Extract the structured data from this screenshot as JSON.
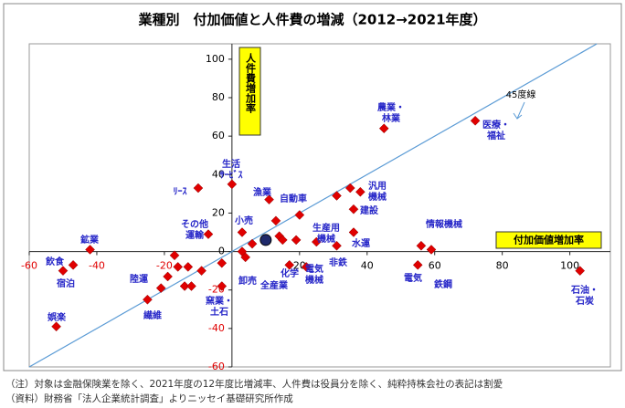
{
  "chart_data": {
    "type": "scatter",
    "title": "業種別　付加価値と人件費の増減（2012→2021年度）",
    "x_label": "付加価値増加率",
    "y_label": "人件費増加率",
    "xlim": [
      -60,
      112
    ],
    "ylim": [
      -60,
      108
    ],
    "xticks": [
      -60,
      -40,
      -20,
      20,
      40,
      60,
      80,
      100
    ],
    "yticks": [
      -60,
      -40,
      -20,
      0,
      20,
      40,
      60,
      80,
      100
    ],
    "negative_tick_color": "#e00000",
    "reference_line": {
      "label": "45度線",
      "color": "#5b9bd5"
    },
    "series": [
      {
        "marker": "diamond",
        "color": "#e00000",
        "x": [
          -42,
          -47,
          -50,
          -52,
          -25,
          -21,
          -17,
          -19,
          -16,
          -13,
          -14,
          -12,
          -9,
          -10,
          -7,
          0,
          3,
          -3,
          -3,
          4,
          3,
          6,
          11,
          13,
          14,
          15,
          17,
          22,
          19,
          20,
          25,
          31,
          31,
          35,
          38,
          36,
          36,
          45,
          72,
          56,
          59,
          55,
          103
        ],
        "values": [
          1,
          -7,
          -10,
          -39,
          -25,
          -19,
          -2,
          -13,
          -8,
          -8,
          -18,
          -18,
          -10,
          33,
          9,
          35,
          10,
          -18,
          -6,
          -3,
          0,
          4,
          27,
          16,
          8,
          6,
          -7,
          -8,
          6,
          19,
          5,
          3,
          29,
          33,
          31,
          22,
          10,
          64,
          68,
          3,
          1,
          -7,
          -10
        ],
        "labels": [
          [
            "鉱業"
          ],
          [
            "飲食"
          ],
          [
            "宿泊"
          ],
          [
            "娯楽"
          ],
          [
            "繊維"
          ],
          [
            "陸運"
          ],
          null,
          null,
          null,
          null,
          null,
          null,
          null,
          [
            "ﾘｰｽ"
          ],
          [
            "その他",
            "運輸"
          ],
          [
            "生活",
            "ｻｰﾋﾞｽ"
          ],
          [
            "小売"
          ],
          [
            "窯業・",
            "土石"
          ],
          null,
          [
            "卸売"
          ],
          null,
          null,
          [
            "漁業"
          ],
          [
            "自動車"
          ],
          null,
          null,
          [
            "化学"
          ],
          [
            "電気",
            "機械"
          ],
          null,
          null,
          [
            "生産用",
            "機械"
          ],
          [
            "非鉄"
          ],
          null,
          null,
          [
            "汎用",
            "機械"
          ],
          [
            "建設"
          ],
          [
            "水運"
          ],
          [
            "農業・",
            "林業"
          ],
          [
            "医療・",
            "福祉"
          ],
          [
            "情報機械"
          ],
          [
            "鉄鋼"
          ],
          [
            "電気"
          ],
          [
            "石油・",
            "石炭"
          ]
        ]
      },
      {
        "marker": "circle",
        "color": "#1f2a6b",
        "x": [
          10
        ],
        "values": [
          6
        ],
        "labels": [
          [
            "全産業"
          ]
        ]
      }
    ],
    "notes": [
      "（注）対象は金融保険業を除く、2021年度の12年度比増減率、人件費は役員分を除く、純粋持株会社の表記は割愛",
      "（資料）財務省「法人企業統計調査」よりニッセイ基礎研究所作成"
    ]
  }
}
